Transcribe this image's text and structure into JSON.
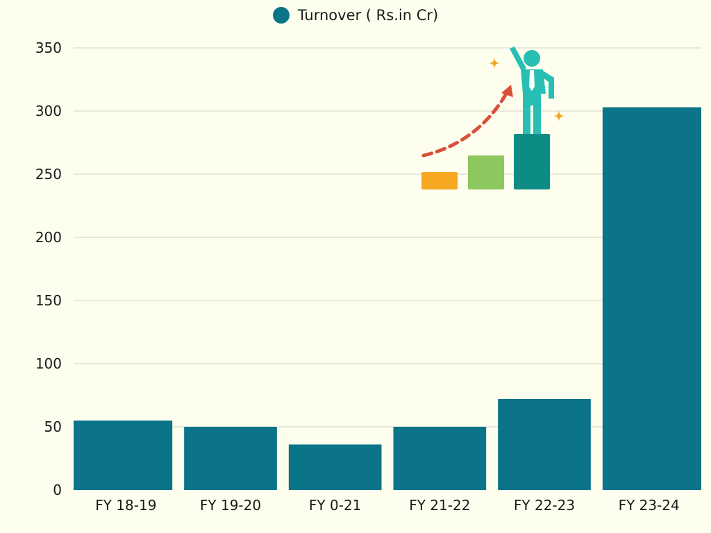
{
  "chart_data": {
    "type": "bar",
    "categories": [
      "FY 18-19",
      "FY 19-20",
      "FY 0-21",
      "FY 21-22",
      "FY 22-23",
      "FY 23-24"
    ],
    "series": [
      {
        "name": "Turnover ( Rs.in Cr)",
        "values": [
          55,
          50,
          36,
          50,
          72,
          303
        ]
      }
    ],
    "ylim": [
      0,
      350
    ],
    "yticks": [
      0,
      50,
      100,
      150,
      200,
      250,
      300,
      350
    ],
    "grid": true,
    "legend_position": "top-center",
    "colors": {
      "bar": "#0b7489",
      "grid": "#d0d0c8",
      "background": "#fefeee"
    }
  },
  "illustration": {
    "icon": "growth-businessman-illustration-icon",
    "colors": {
      "step1": "#f5a81f",
      "step2": "#8cc760",
      "step3": "#0c8c84",
      "person": "#27bfb3",
      "arrow": "#d9503a",
      "sparkle": "#f2a52a"
    }
  }
}
